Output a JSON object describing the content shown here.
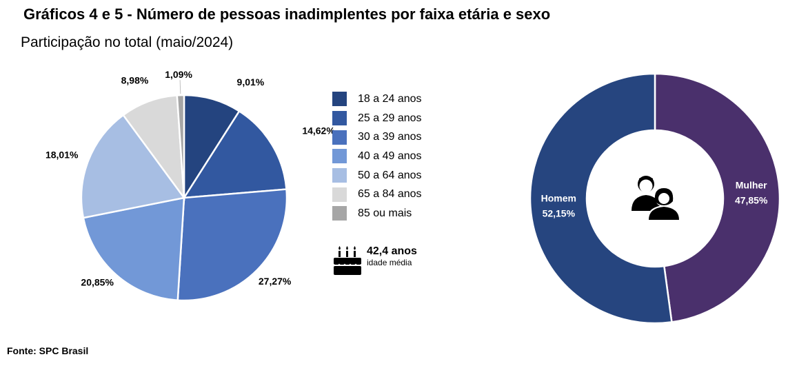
{
  "header": {
    "title": "Gráficos 4 e 5 - Número de pessoas inadimplentes por faixa etária e sexo",
    "subtitle": "Participação no total (maio/2024)"
  },
  "source": "Fonte: SPC Brasil",
  "average_age": {
    "value": "42,4 anos",
    "label": "idade média",
    "icon": "birthday-cake-icon"
  },
  "chart_data": [
    {
      "type": "pie",
      "categories": [
        "18 a 24 anos",
        "25 a 29 anos",
        "30 a 39 anos",
        "40 a 49 anos",
        "50 a 64 anos",
        "65 a 84 anos",
        "85 ou mais"
      ],
      "values": [
        9.01,
        14.62,
        27.27,
        20.85,
        18.01,
        8.98,
        1.09
      ],
      "data_labels": [
        "9,01%",
        "14,62%",
        "27,27%",
        "20,85%",
        "18,01%",
        "8,98%",
        "1,09%"
      ],
      "colors": [
        "#24447f",
        "#3258a0",
        "#4a71bd",
        "#7298d7",
        "#a7bee3",
        "#d9d9d9",
        "#a6a6a6"
      ],
      "legend_position": "right"
    },
    {
      "type": "donut",
      "categories": [
        "Homem",
        "Mulher"
      ],
      "values": [
        52.15,
        47.85
      ],
      "data_labels": [
        "52,15%",
        "47,85%"
      ],
      "colors": [
        "#26457f",
        "#4a306c"
      ],
      "center_icon": "man-and-woman-icon"
    }
  ]
}
